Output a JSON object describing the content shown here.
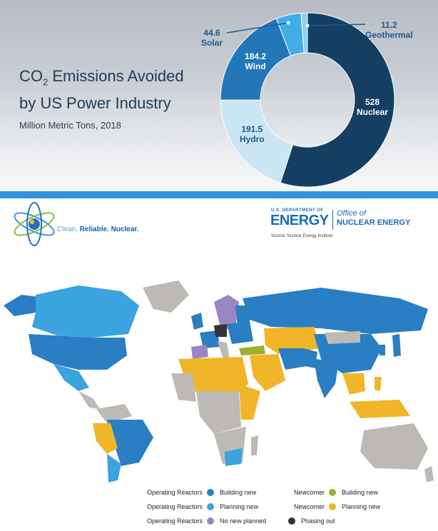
{
  "chart_data": {
    "type": "pie",
    "title": "CO2 Emissions Avoided by US Power Industry",
    "subtitle": "Million Metric Tons, 2018",
    "slices": [
      {
        "label": "Nuclear",
        "value": 528,
        "color": "#143f62"
      },
      {
        "label": "Hydro",
        "value": 191.5,
        "color": "#cbe6f4"
      },
      {
        "label": "Wind",
        "value": 184.2,
        "color": "#2277b8"
      },
      {
        "label": "Solar",
        "value": 44.6,
        "color": "#42aee8"
      },
      {
        "label": "Geothermal",
        "value": 11.2,
        "color": "#8cd0f2"
      }
    ]
  },
  "chart_text": {
    "title_pre": "CO",
    "title_sub": "2",
    "title_line1": " Emissions Avoided",
    "title_line2": "by US Power Industry",
    "subtitle": "Million Metric Tons, 2018",
    "nuclear_value": "528",
    "nuclear_label": "Nuclear",
    "hydro_value": "191.5",
    "hydro_label": "Hydro",
    "wind_value": "184.2",
    "wind_label": "Wind",
    "solar_value": "44.6",
    "solar_label": "Solar",
    "geo_value": "11.2",
    "geo_label": "Geothermal"
  },
  "branding": {
    "tagline_1": "Clean. ",
    "tagline_2": "Reliable. ",
    "tagline_3": "Nuclear.",
    "doe_small": "U.S. DEPARTMENT OF",
    "doe_big": "ENERGY",
    "office_line1": "Office of",
    "office_line2": "NUCLEAR ENERGY",
    "source": "Source: Nuclear Energy Institute"
  },
  "colors": {
    "operating_building": "#2a7ec4",
    "operating_planning": "#3ba3de",
    "operating_no_new": "#9b86c4",
    "newcomer_building": "#9cb12e",
    "newcomer_planning": "#f0b528",
    "phasing_out": "#333333",
    "no_program": "#bdbab6"
  },
  "legend": [
    {
      "group": "Operating Reactors",
      "status": "Building new",
      "color": "#2a7ec4"
    },
    {
      "group": "Operating Reactors",
      "status": "Planning new",
      "color": "#3ba3de"
    },
    {
      "group": "Operating Reactors",
      "status": "No new planned",
      "color": "#9b86c4"
    },
    {
      "group": "Newcomer",
      "status": "Building new",
      "color": "#9cb12e"
    },
    {
      "group": "Newcomer",
      "status": "Planning new",
      "color": "#f0b528"
    },
    {
      "group": "",
      "status": "Phasing out",
      "color": "#333333"
    }
  ]
}
